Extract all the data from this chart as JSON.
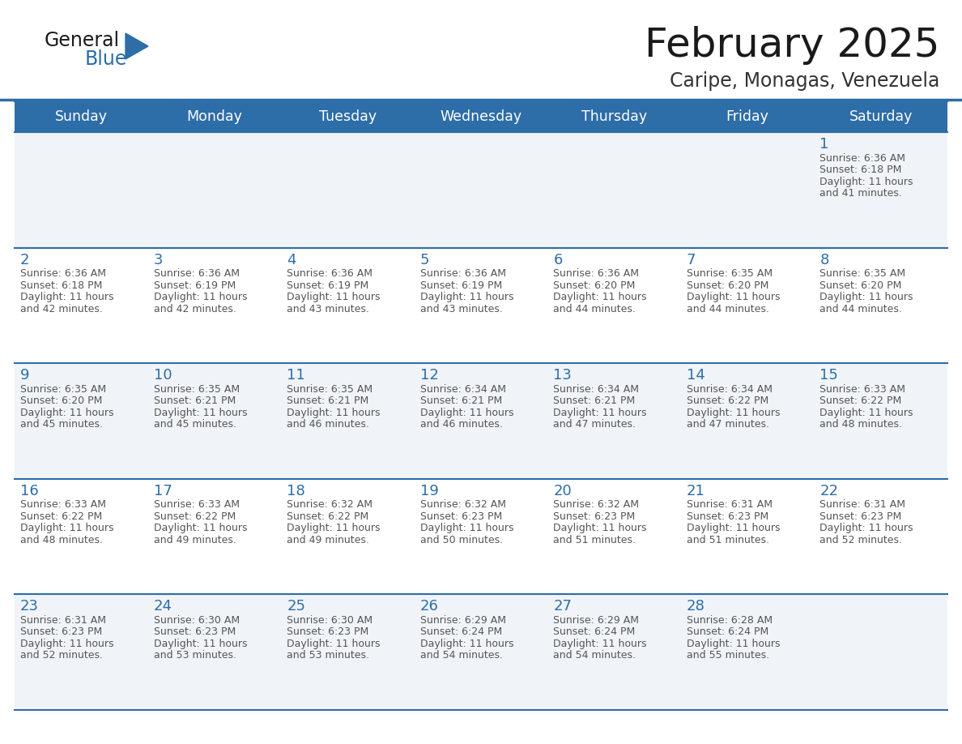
{
  "title": "February 2025",
  "subtitle": "Caripe, Monagas, Venezuela",
  "days_of_week": [
    "Sunday",
    "Monday",
    "Tuesday",
    "Wednesday",
    "Thursday",
    "Friday",
    "Saturday"
  ],
  "header_bg": "#2d6da8",
  "header_text": "#ffffff",
  "cell_bg_odd": "#f0f4f8",
  "cell_bg_even": "#ffffff",
  "border_color": "#2d6da8",
  "day_number_color": "#2d6da8",
  "cell_text_color": "#555555",
  "title_color": "#1a1a1a",
  "subtitle_color": "#333333",
  "logo_general_color": "#1a1a1a",
  "logo_blue_color": "#2d6da8",
  "calendar_data": [
    [
      null,
      null,
      null,
      null,
      null,
      null,
      {
        "day": 1,
        "sunrise": "6:36 AM",
        "sunset": "6:18 PM",
        "daylight_line1": "Daylight: 11 hours",
        "daylight_line2": "and 41 minutes."
      }
    ],
    [
      {
        "day": 2,
        "sunrise": "6:36 AM",
        "sunset": "6:18 PM",
        "daylight_line1": "Daylight: 11 hours",
        "daylight_line2": "and 42 minutes."
      },
      {
        "day": 3,
        "sunrise": "6:36 AM",
        "sunset": "6:19 PM",
        "daylight_line1": "Daylight: 11 hours",
        "daylight_line2": "and 42 minutes."
      },
      {
        "day": 4,
        "sunrise": "6:36 AM",
        "sunset": "6:19 PM",
        "daylight_line1": "Daylight: 11 hours",
        "daylight_line2": "and 43 minutes."
      },
      {
        "day": 5,
        "sunrise": "6:36 AM",
        "sunset": "6:19 PM",
        "daylight_line1": "Daylight: 11 hours",
        "daylight_line2": "and 43 minutes."
      },
      {
        "day": 6,
        "sunrise": "6:36 AM",
        "sunset": "6:20 PM",
        "daylight_line1": "Daylight: 11 hours",
        "daylight_line2": "and 44 minutes."
      },
      {
        "day": 7,
        "sunrise": "6:35 AM",
        "sunset": "6:20 PM",
        "daylight_line1": "Daylight: 11 hours",
        "daylight_line2": "and 44 minutes."
      },
      {
        "day": 8,
        "sunrise": "6:35 AM",
        "sunset": "6:20 PM",
        "daylight_line1": "Daylight: 11 hours",
        "daylight_line2": "and 44 minutes."
      }
    ],
    [
      {
        "day": 9,
        "sunrise": "6:35 AM",
        "sunset": "6:20 PM",
        "daylight_line1": "Daylight: 11 hours",
        "daylight_line2": "and 45 minutes."
      },
      {
        "day": 10,
        "sunrise": "6:35 AM",
        "sunset": "6:21 PM",
        "daylight_line1": "Daylight: 11 hours",
        "daylight_line2": "and 45 minutes."
      },
      {
        "day": 11,
        "sunrise": "6:35 AM",
        "sunset": "6:21 PM",
        "daylight_line1": "Daylight: 11 hours",
        "daylight_line2": "and 46 minutes."
      },
      {
        "day": 12,
        "sunrise": "6:34 AM",
        "sunset": "6:21 PM",
        "daylight_line1": "Daylight: 11 hours",
        "daylight_line2": "and 46 minutes."
      },
      {
        "day": 13,
        "sunrise": "6:34 AM",
        "sunset": "6:21 PM",
        "daylight_line1": "Daylight: 11 hours",
        "daylight_line2": "and 47 minutes."
      },
      {
        "day": 14,
        "sunrise": "6:34 AM",
        "sunset": "6:22 PM",
        "daylight_line1": "Daylight: 11 hours",
        "daylight_line2": "and 47 minutes."
      },
      {
        "day": 15,
        "sunrise": "6:33 AM",
        "sunset": "6:22 PM",
        "daylight_line1": "Daylight: 11 hours",
        "daylight_line2": "and 48 minutes."
      }
    ],
    [
      {
        "day": 16,
        "sunrise": "6:33 AM",
        "sunset": "6:22 PM",
        "daylight_line1": "Daylight: 11 hours",
        "daylight_line2": "and 48 minutes."
      },
      {
        "day": 17,
        "sunrise": "6:33 AM",
        "sunset": "6:22 PM",
        "daylight_line1": "Daylight: 11 hours",
        "daylight_line2": "and 49 minutes."
      },
      {
        "day": 18,
        "sunrise": "6:32 AM",
        "sunset": "6:22 PM",
        "daylight_line1": "Daylight: 11 hours",
        "daylight_line2": "and 49 minutes."
      },
      {
        "day": 19,
        "sunrise": "6:32 AM",
        "sunset": "6:23 PM",
        "daylight_line1": "Daylight: 11 hours",
        "daylight_line2": "and 50 minutes."
      },
      {
        "day": 20,
        "sunrise": "6:32 AM",
        "sunset": "6:23 PM",
        "daylight_line1": "Daylight: 11 hours",
        "daylight_line2": "and 51 minutes."
      },
      {
        "day": 21,
        "sunrise": "6:31 AM",
        "sunset": "6:23 PM",
        "daylight_line1": "Daylight: 11 hours",
        "daylight_line2": "and 51 minutes."
      },
      {
        "day": 22,
        "sunrise": "6:31 AM",
        "sunset": "6:23 PM",
        "daylight_line1": "Daylight: 11 hours",
        "daylight_line2": "and 52 minutes."
      }
    ],
    [
      {
        "day": 23,
        "sunrise": "6:31 AM",
        "sunset": "6:23 PM",
        "daylight_line1": "Daylight: 11 hours",
        "daylight_line2": "and 52 minutes."
      },
      {
        "day": 24,
        "sunrise": "6:30 AM",
        "sunset": "6:23 PM",
        "daylight_line1": "Daylight: 11 hours",
        "daylight_line2": "and 53 minutes."
      },
      {
        "day": 25,
        "sunrise": "6:30 AM",
        "sunset": "6:23 PM",
        "daylight_line1": "Daylight: 11 hours",
        "daylight_line2": "and 53 minutes."
      },
      {
        "day": 26,
        "sunrise": "6:29 AM",
        "sunset": "6:24 PM",
        "daylight_line1": "Daylight: 11 hours",
        "daylight_line2": "and 54 minutes."
      },
      {
        "day": 27,
        "sunrise": "6:29 AM",
        "sunset": "6:24 PM",
        "daylight_line1": "Daylight: 11 hours",
        "daylight_line2": "and 54 minutes."
      },
      {
        "day": 28,
        "sunrise": "6:28 AM",
        "sunset": "6:24 PM",
        "daylight_line1": "Daylight: 11 hours",
        "daylight_line2": "and 55 minutes."
      },
      null
    ]
  ]
}
